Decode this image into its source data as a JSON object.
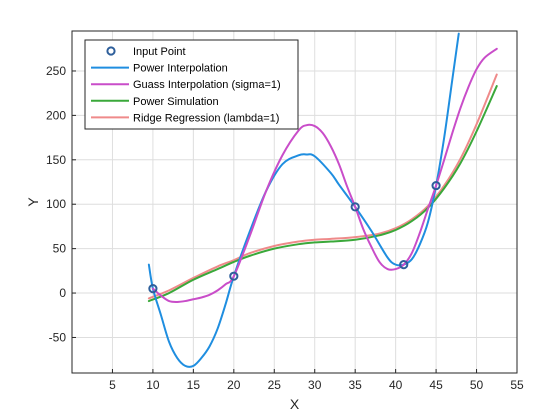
{
  "colors": {
    "input_point": "#2e5f9b",
    "power_interpolation": "#1f8ee0",
    "gauss_interpolation": "#c94dc9",
    "power_simulation": "#3aa83a",
    "ridge_regression": "#ef8a8a",
    "grid": "#dedede",
    "axis": "#262626",
    "background": "#ffffff"
  },
  "chart_data": {
    "type": "line",
    "xlabel": "X",
    "ylabel": "Y",
    "xlim": [
      0,
      55
    ],
    "ylim": [
      -90,
      295
    ],
    "xticks": [
      5,
      10,
      15,
      20,
      25,
      30,
      35,
      40,
      45,
      50,
      55
    ],
    "yticks": [
      -50,
      0,
      50,
      100,
      150,
      200,
      250
    ],
    "grid": true,
    "legend_position": "top-left",
    "points": {
      "name": "Input Point",
      "x": [
        10,
        20,
        35,
        41,
        45
      ],
      "y": [
        5,
        19,
        97,
        32,
        121
      ]
    },
    "series": [
      {
        "name": "Power Interpolation",
        "color_key": "power_interpolation",
        "x": [
          9.5,
          10,
          11,
          12,
          13,
          14,
          15,
          16,
          17,
          18,
          19,
          20,
          22,
          24,
          26,
          28,
          29,
          30,
          32,
          33,
          35,
          37,
          39,
          40,
          41,
          42,
          43,
          44,
          45,
          46,
          47,
          47.8
        ],
        "y": [
          32,
          5,
          -25,
          -55,
          -73,
          -82,
          -82,
          -73,
          -60,
          -40,
          -12,
          19,
          70,
          115,
          145,
          155,
          156,
          154,
          135,
          122,
          97,
          70,
          40,
          32,
          32,
          38,
          55,
          80,
          121,
          175,
          240,
          292
        ]
      },
      {
        "name": "Guass Interpolation (sigma=1)",
        "color_key": "gauss_interpolation",
        "x": [
          10,
          11,
          12,
          13,
          14,
          15,
          16,
          17,
          18,
          19,
          20,
          22,
          24,
          26,
          28,
          29,
          30,
          31,
          32,
          33,
          34,
          35,
          36,
          37,
          38,
          39,
          40,
          41,
          42,
          43,
          44,
          45,
          46,
          47,
          48,
          49,
          50,
          51,
          52.5
        ],
        "y": [
          5,
          -3,
          -9,
          -10,
          -9,
          -7,
          -5,
          -2,
          3,
          10,
          19,
          65,
          115,
          155,
          183,
          189,
          188,
          180,
          165,
          145,
          120,
          97,
          72,
          52,
          35,
          27,
          27,
          32,
          45,
          68,
          95,
          121,
          150,
          180,
          208,
          232,
          252,
          265,
          275
        ]
      },
      {
        "name": "Power Simulation",
        "color_key": "power_simulation",
        "x": [
          9.5,
          12,
          15,
          18,
          20,
          22,
          25,
          28,
          30,
          32,
          35,
          38,
          40,
          42,
          44,
          46,
          48,
          50,
          52.5
        ],
        "y": [
          -9,
          0,
          15,
          27,
          35,
          42,
          50,
          55,
          57,
          58,
          60,
          65,
          71,
          81,
          96,
          118,
          146,
          182,
          233
        ]
      },
      {
        "name": "Ridge Regression (lambda=1)",
        "color_key": "ridge_regression",
        "x": [
          9.5,
          12,
          15,
          18,
          20,
          22,
          25,
          28,
          30,
          32,
          35,
          38,
          40,
          42,
          44,
          46,
          48,
          50,
          52.5
        ],
        "y": [
          -6,
          3,
          17,
          30,
          37,
          45,
          53,
          58,
          60,
          61,
          63,
          67,
          73,
          83,
          98,
          121,
          151,
          190,
          246
        ]
      }
    ]
  }
}
